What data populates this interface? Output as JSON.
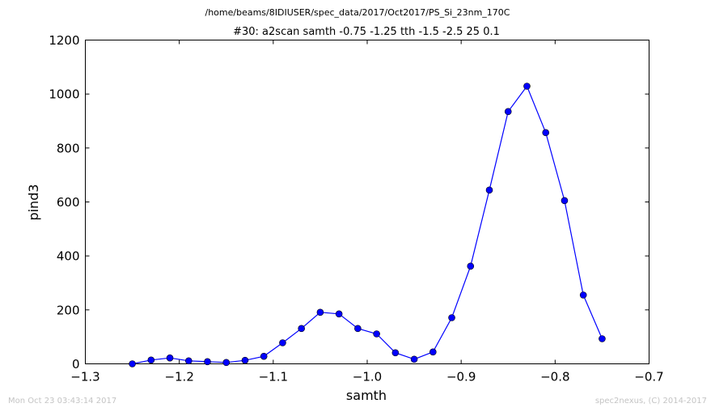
{
  "file_path": "/home/beams/8IDIUSER/spec_data/2017/Oct2017/PS_Si_23nm_170C",
  "footer": {
    "timestamp": "Mon Oct 23 03:43:14 2017",
    "credit": "spec2nexus, (C) 2014-2017"
  },
  "chart_data": {
    "type": "line",
    "title": "#30: a2scan  samth -0.75 -1.25  tth -1.5 -2.5  25 0.1",
    "xlabel": "samth",
    "ylabel": "pind3",
    "xlim": [
      -1.3,
      -0.7
    ],
    "ylim": [
      0,
      1200
    ],
    "xticks": [
      -1.3,
      -1.2,
      -1.1,
      -1.0,
      -0.9,
      -0.8,
      -0.7
    ],
    "xtick_labels": [
      "−1.3",
      "−1.2",
      "−1.1",
      "−1.0",
      "−0.9",
      "−0.8",
      "−0.7"
    ],
    "yticks": [
      0,
      200,
      400,
      600,
      800,
      1000,
      1200
    ],
    "ytick_labels": [
      "0",
      "200",
      "400",
      "600",
      "800",
      "1000",
      "1200"
    ],
    "grid": false,
    "line_color": "#0000ff",
    "marker": "circle",
    "series": [
      {
        "x": [
          -1.25,
          -1.23,
          -1.21,
          -1.19,
          -1.17,
          -1.15,
          -1.13,
          -1.11,
          -1.09,
          -1.07,
          -1.05,
          -1.03,
          -1.01,
          -0.99,
          -0.97,
          -0.95,
          -0.93,
          -0.91,
          -0.89,
          -0.87,
          -0.85,
          -0.83,
          -0.81,
          -0.79,
          -0.77,
          -0.75
        ],
        "y": [
          0,
          14,
          22,
          11,
          8,
          5,
          13,
          28,
          78,
          131,
          191,
          185,
          131,
          111,
          41,
          17,
          44,
          171,
          362,
          644,
          935,
          1029,
          857,
          605,
          255,
          93
        ]
      }
    ]
  }
}
